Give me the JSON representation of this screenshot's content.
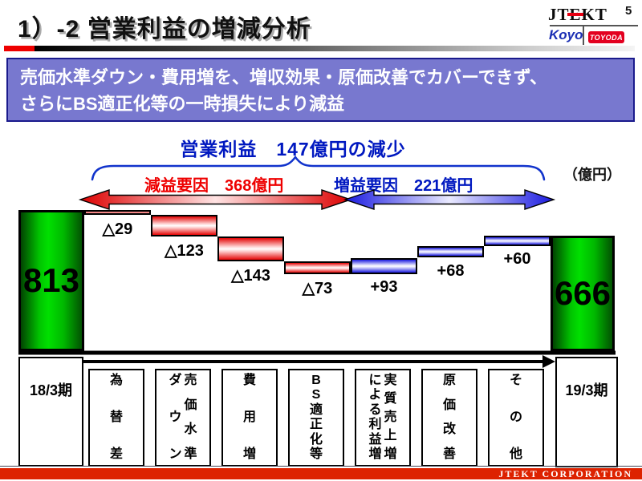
{
  "page": {
    "number": "5"
  },
  "header": {
    "title": "1）-2 営業利益の増減分析",
    "logo": {
      "brand": "JTEKT",
      "sub_left": "Koyo",
      "sub_right": "TOYODA"
    }
  },
  "banner": {
    "line1": "売価水準ダウン・費用増を、増収効果・原価改善でカバーできず、",
    "line2": "さらにBS適正化等の一時損失により減益"
  },
  "chart_header": {
    "total_change_label": "営業利益　147億円の減少",
    "decrease_label": "減益要因　368億円",
    "increase_label": "増益要因　221億円",
    "unit": "（億円）"
  },
  "footer": {
    "company": "JTEKT  CORPORATION"
  },
  "colors": {
    "banner_bg": "#7878cf",
    "banner_border": "#1a1a8c",
    "accent_red": "#ee0000",
    "accent_blue": "#0018c0",
    "bar_green": "#00c300",
    "footer_red": "#dd2200",
    "logo_red": "#e60012",
    "koyo_blue": "#1b2fb4"
  },
  "chart_data": {
    "type": "waterfall",
    "title": "営業利益　147億円の減少",
    "unit": "億円",
    "total_change": -147,
    "decrease_total": 368,
    "increase_total": 221,
    "start": {
      "label": "18/3期",
      "value": 813
    },
    "end": {
      "label": "19/3期",
      "value": 666
    },
    "steps": [
      {
        "label": "為替差",
        "label_columns": [
          "為替差"
        ],
        "value": -29,
        "display": "△29"
      },
      {
        "label": "売価水準ダウン",
        "label_columns": [
          "売価水準",
          "ダウン"
        ],
        "value": -123,
        "display": "△123"
      },
      {
        "label": "費用増",
        "label_columns": [
          "費用増"
        ],
        "value": -143,
        "display": "△143"
      },
      {
        "label": "BS適正化等",
        "label_columns": [
          "BS適正化等"
        ],
        "value": -73,
        "display": "△73"
      },
      {
        "label": "実質売上増による利益増",
        "label_columns": [
          "実質売上増",
          "による利益増"
        ],
        "value": 93,
        "display": "+93"
      },
      {
        "label": "原価改善",
        "label_columns": [
          "原価改善"
        ],
        "value": 68,
        "display": "+68"
      },
      {
        "label": "その他",
        "label_columns": [
          "その他"
        ],
        "value": 60,
        "display": "+60"
      }
    ]
  }
}
